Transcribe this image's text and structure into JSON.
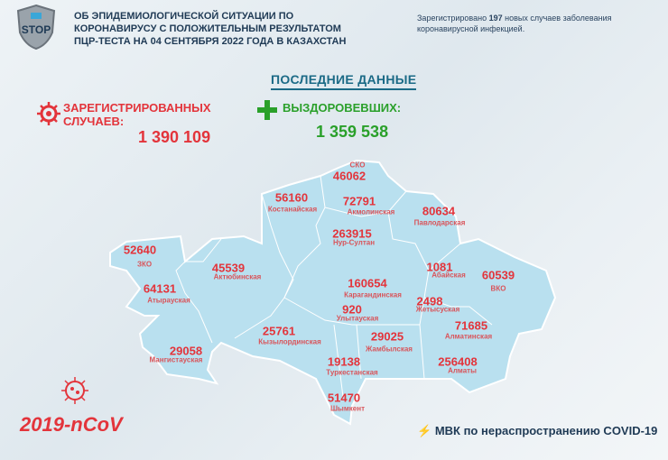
{
  "header": {
    "logo_text": "STOP",
    "title_lines": [
      "ОБ ЭПИДЕМИОЛОГИЧЕСКОЙ СИТУАЦИИ ПО",
      "КОРОНАВИРУСУ С ПОЛОЖИТЕЛЬНЫМ РЕЗУЛЬТАТОМ",
      "ПЦР-ТЕСТА НА 04 СЕНТЯБРЯ 2022 ГОДА В КАЗАХСТАН"
    ],
    "news_prefix": "Зарегистрировано ",
    "news_count": "197",
    "news_suffix": " новых случаев заболевания коронавирусной инфекцией."
  },
  "latest_title": "ПОСЛЕДНИЕ ДАННЫЕ",
  "registered": {
    "label_1": "ЗАРЕГИСТРИРОВАННЫХ",
    "label_2": "СЛУЧАЕВ:",
    "value": "1 390 109",
    "icon": "virus-icon"
  },
  "recovered": {
    "label": "ВЫЗДОРОВЕВШИХ:",
    "value": "1 359 538",
    "icon": "plus-icon"
  },
  "regions": [
    {
      "name": "СКО",
      "value": "46062"
    },
    {
      "name": "Костанайская",
      "value": "56160"
    },
    {
      "name": "Акмолинская",
      "value": "72791"
    },
    {
      "name": "Павлодарская",
      "value": "80634"
    },
    {
      "name": "Нур-Султан",
      "value": "263915"
    },
    {
      "name": "ЗКО",
      "value": "52640"
    },
    {
      "name": "Актюбинская",
      "value": "45539"
    },
    {
      "name": "Абайская",
      "value": "1081"
    },
    {
      "name": "ВКО",
      "value": "60539"
    },
    {
      "name": "Атырауская",
      "value": "64131"
    },
    {
      "name": "Карагандинская",
      "value": "160654"
    },
    {
      "name": "Жетысуская",
      "value": "2498"
    },
    {
      "name": "Улытауская",
      "value": "920"
    },
    {
      "name": "Алматинская",
      "value": "71685"
    },
    {
      "name": "Кызылординская",
      "value": "25761"
    },
    {
      "name": "Жамбылская",
      "value": "29025"
    },
    {
      "name": "Мангистауская",
      "value": "29058"
    },
    {
      "name": "Алматы",
      "value": "256408"
    },
    {
      "name": "Туркестанская",
      "value": "19138"
    },
    {
      "name": "Шымкент",
      "value": "51470"
    }
  ],
  "footer": {
    "ncov": "2019-nCoV",
    "mvk": "МВК по нераспространению COVID-19"
  },
  "colors": {
    "red": "#e3343b",
    "green": "#2aa02a",
    "map": "#b9e0ef",
    "navy": "#1f3a55"
  }
}
